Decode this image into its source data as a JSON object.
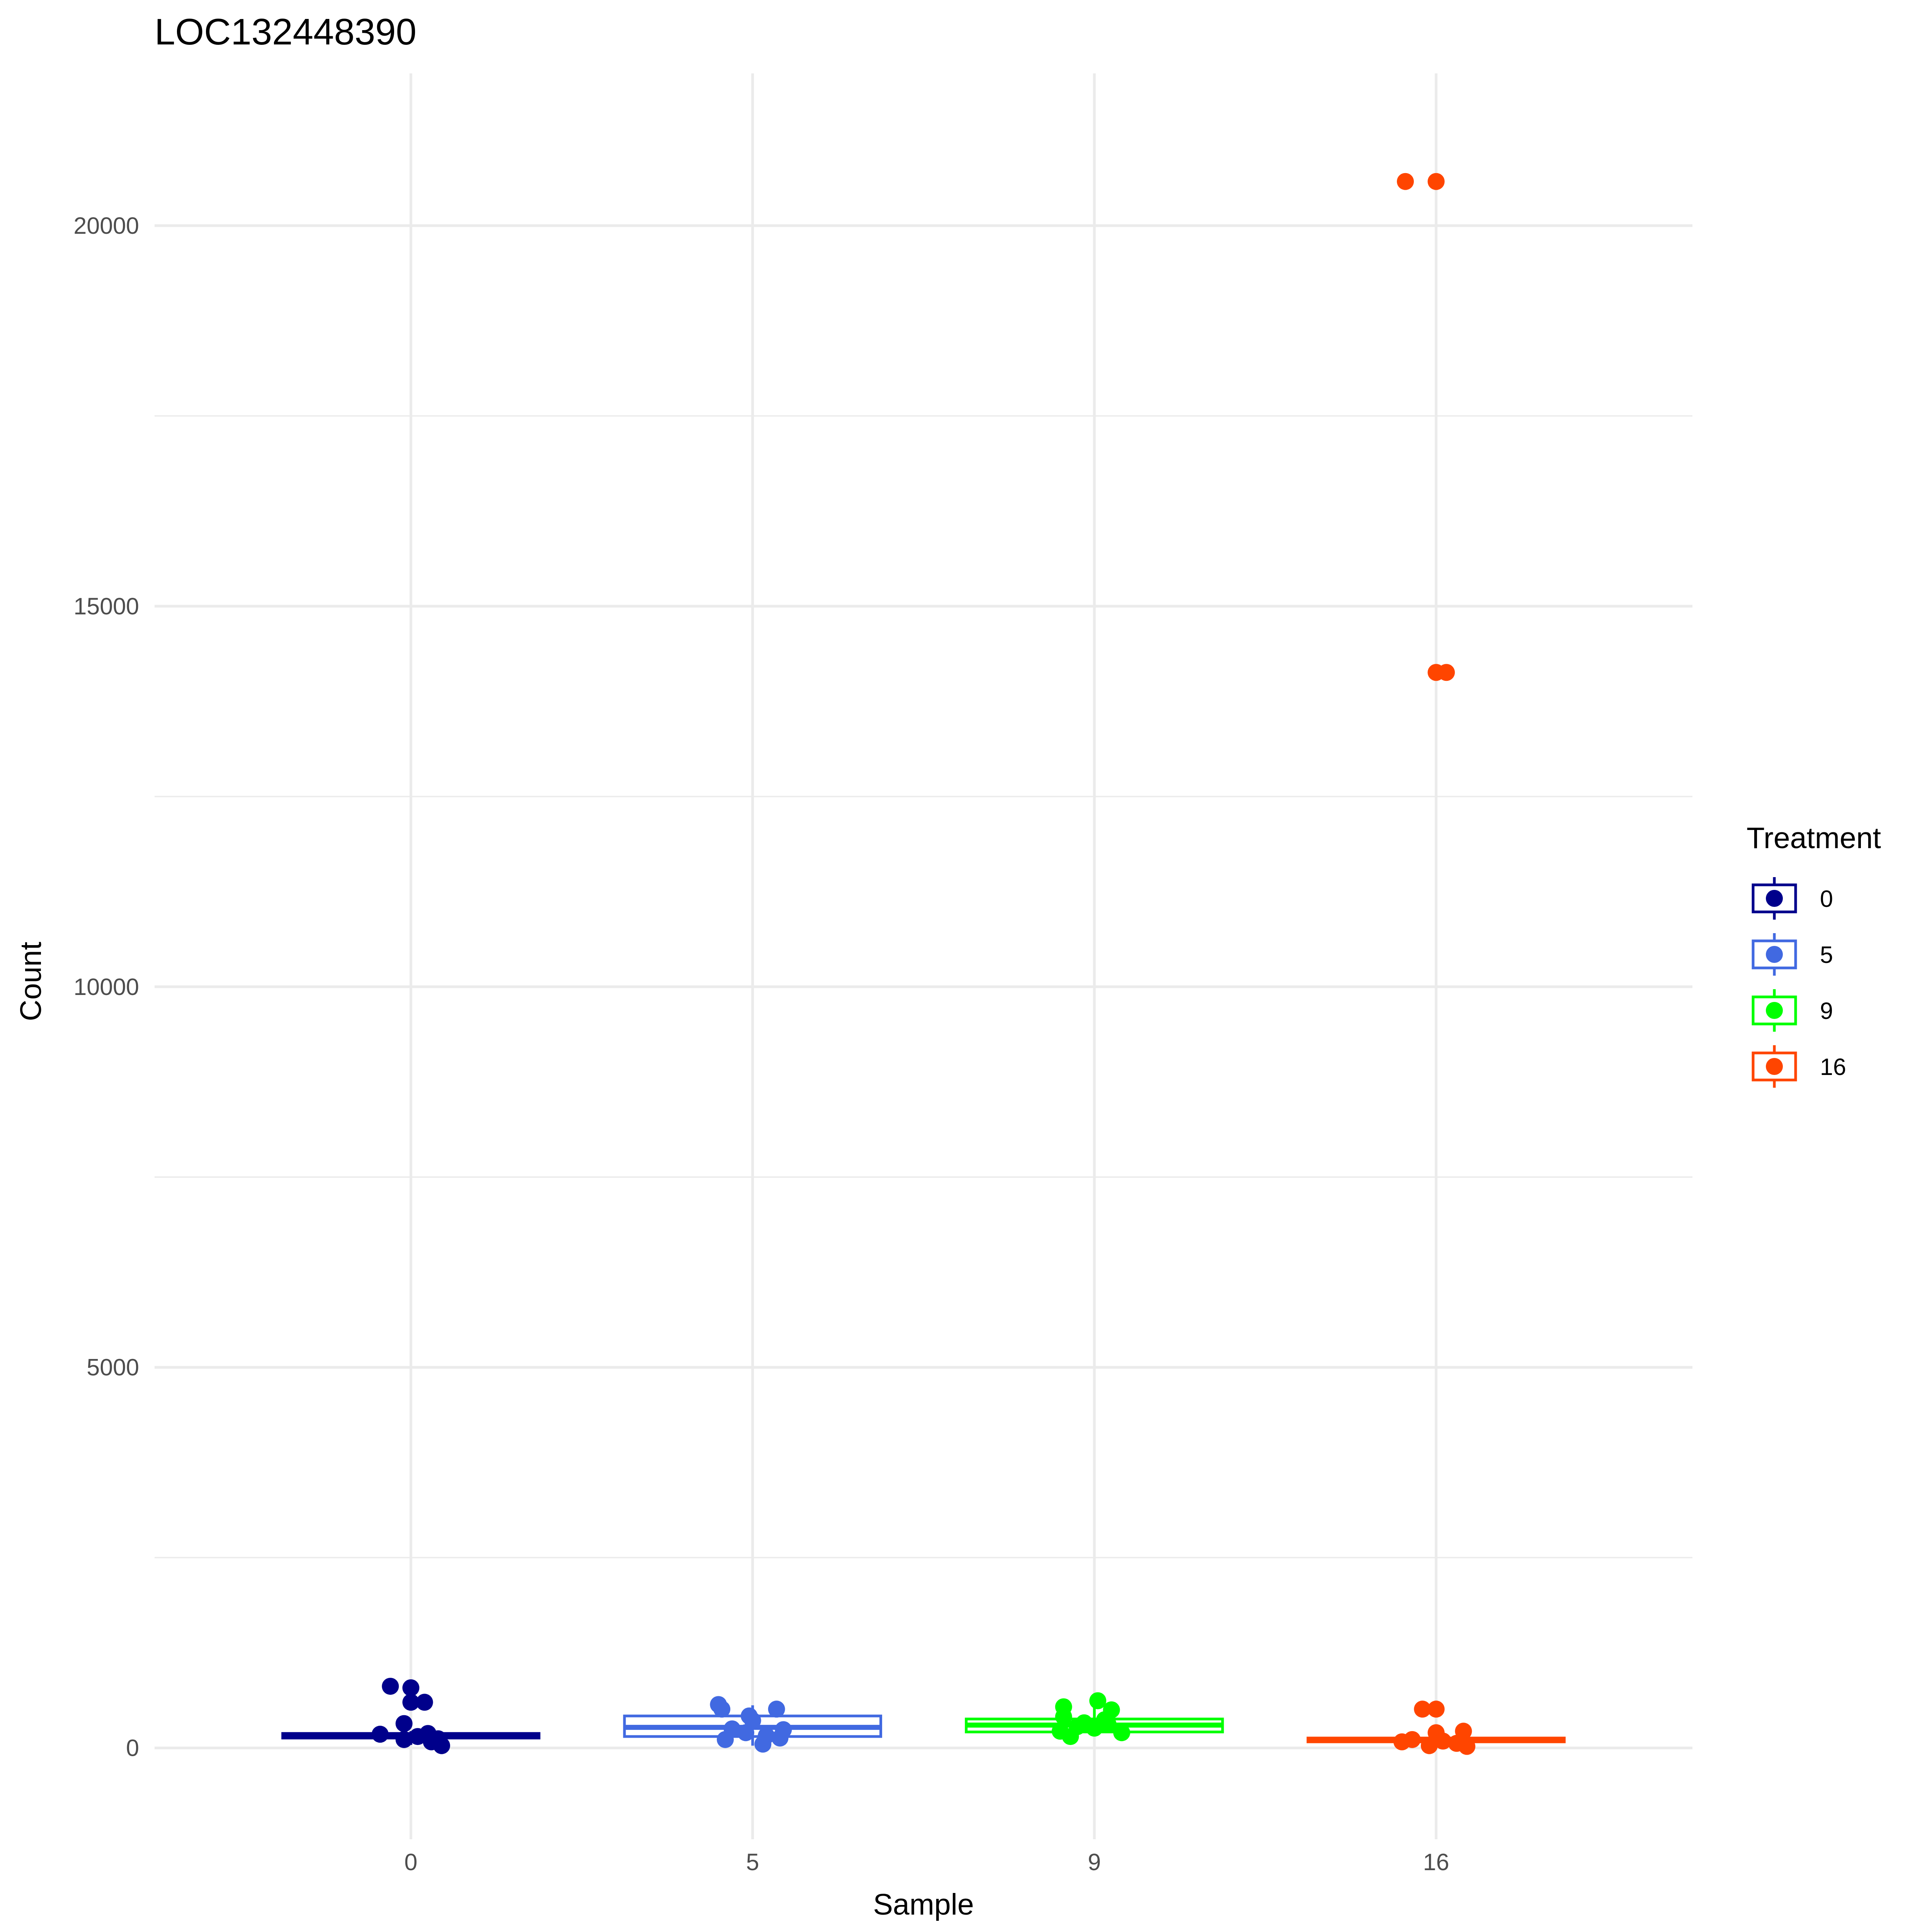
{
  "chart_data": {
    "type": "box",
    "title": "LOC132448390",
    "xlabel": "Sample",
    "ylabel": "Count",
    "categories": [
      "0",
      "5",
      "9",
      "16"
    ],
    "ylim": [
      -1200,
      22000
    ],
    "yticks": [
      0,
      5000,
      10000,
      15000,
      20000
    ],
    "ytick_labels": [
      "0",
      "5000",
      "10000",
      "15000",
      "20000"
    ],
    "grid": true,
    "legend": {
      "title": "Treatment",
      "position": "right",
      "entries": [
        "0",
        "5",
        "9",
        "16"
      ]
    },
    "series": [
      {
        "name": "0",
        "color": "#00008B",
        "box": {
          "min": 40,
          "q1": 130,
          "median": 160,
          "q3": 190,
          "max": 220
        },
        "points": [
          {
            "x": -0.06,
            "y": 810
          },
          {
            "x": 0.0,
            "y": 790
          },
          {
            "x": 0.04,
            "y": 600
          },
          {
            "x": 0.0,
            "y": 600
          },
          {
            "x": -0.09,
            "y": 180
          },
          {
            "x": -0.02,
            "y": 320
          },
          {
            "x": 0.05,
            "y": 190
          },
          {
            "x": -0.02,
            "y": 110
          },
          {
            "x": 0.02,
            "y": 150
          },
          {
            "x": 0.06,
            "y": 80
          },
          {
            "x": 0.08,
            "y": 120
          },
          {
            "x": 0.09,
            "y": 30
          }
        ]
      },
      {
        "name": "5",
        "color": "#4169E1",
        "box": {
          "min": 30,
          "q1": 150,
          "median": 270,
          "q3": 420,
          "max": 560
        },
        "points": [
          {
            "x": -0.1,
            "y": 570
          },
          {
            "x": -0.09,
            "y": 510
          },
          {
            "x": 0.07,
            "y": 510
          },
          {
            "x": -0.01,
            "y": 420
          },
          {
            "x": -0.06,
            "y": 250
          },
          {
            "x": 0.0,
            "y": 360
          },
          {
            "x": 0.09,
            "y": 240
          },
          {
            "x": -0.08,
            "y": 110
          },
          {
            "x": 0.04,
            "y": 160
          },
          {
            "x": 0.08,
            "y": 130
          },
          {
            "x": 0.03,
            "y": 50
          },
          {
            "x": -0.02,
            "y": 200
          }
        ]
      },
      {
        "name": "9",
        "color": "#00FF00",
        "box": {
          "min": 150,
          "q1": 210,
          "median": 300,
          "q3": 380,
          "max": 600
        },
        "points": [
          {
            "x": 0.01,
            "y": 620
          },
          {
            "x": -0.09,
            "y": 540
          },
          {
            "x": 0.05,
            "y": 500
          },
          {
            "x": -0.09,
            "y": 410
          },
          {
            "x": 0.03,
            "y": 370
          },
          {
            "x": -0.05,
            "y": 280
          },
          {
            "x": 0.0,
            "y": 260
          },
          {
            "x": 0.08,
            "y": 200
          },
          {
            "x": -0.1,
            "y": 220
          },
          {
            "x": -0.07,
            "y": 150
          },
          {
            "x": 0.04,
            "y": 310
          },
          {
            "x": -0.03,
            "y": 330
          }
        ]
      },
      {
        "name": "16",
        "color": "#FF4500",
        "box": {
          "min": 10,
          "q1": 80,
          "median": 110,
          "q3": 130,
          "max": 220
        },
        "points": [
          {
            "x": -0.09,
            "y": 20580
          },
          {
            "x": 0.0,
            "y": 20580
          },
          {
            "x": 0.0,
            "y": 14130
          },
          {
            "x": 0.03,
            "y": 14130
          },
          {
            "x": -0.04,
            "y": 510
          },
          {
            "x": 0.0,
            "y": 510
          },
          {
            "x": 0.08,
            "y": 220
          },
          {
            "x": 0.0,
            "y": 200
          },
          {
            "x": -0.07,
            "y": 110
          },
          {
            "x": -0.02,
            "y": 30
          },
          {
            "x": 0.02,
            "y": 90
          },
          {
            "x": 0.06,
            "y": 60
          },
          {
            "x": 0.09,
            "y": 20
          },
          {
            "x": -0.1,
            "y": 80
          }
        ]
      }
    ]
  }
}
